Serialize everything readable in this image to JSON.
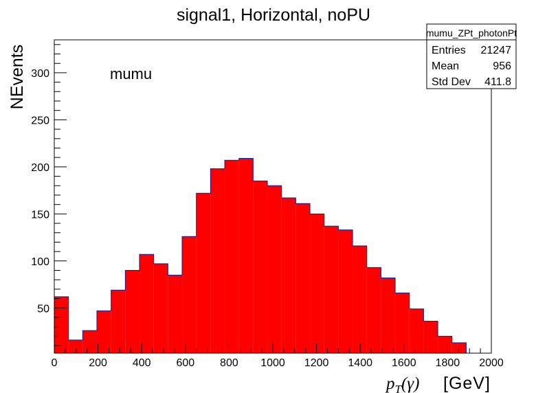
{
  "chart_data": {
    "type": "bar",
    "title": "signal1, Horizontal, noPU",
    "xlabel_main": "p",
    "xlabel_sub": "T",
    "xlabel_rest": "(γ)",
    "xlabel_unit": "[GeV]",
    "ylabel": "NEvents",
    "annotation": "mumu",
    "xlim": [
      0,
      2000
    ],
    "ylim": [
      2,
      335
    ],
    "bin_width": 65,
    "bin_edges_start": 0,
    "values": [
      62,
      16,
      26,
      47,
      69,
      90,
      107,
      97,
      85,
      126,
      172,
      198,
      207,
      209,
      185,
      180,
      167,
      161,
      150,
      137,
      133,
      116,
      93,
      82,
      66,
      49,
      36,
      20,
      13,
      0
    ],
    "fill_color": "#ff0000",
    "line_color": "#1a1a8c",
    "x_ticks": [
      0,
      200,
      400,
      600,
      800,
      1000,
      1200,
      1400,
      1600,
      1800,
      2000
    ],
    "y_ticks": [
      50,
      100,
      150,
      200,
      250,
      300
    ],
    "stats": {
      "name": "mumu_ZPt_photonPt",
      "rows": [
        {
          "label": "Entries",
          "value": "21247"
        },
        {
          "label": "Mean",
          "value": "956"
        },
        {
          "label": "Std Dev",
          "value": "411.8"
        }
      ]
    }
  }
}
